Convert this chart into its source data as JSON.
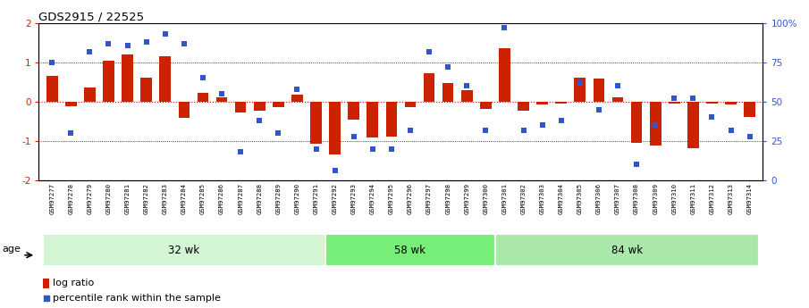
{
  "title": "GDS2915 / 22525",
  "samples": [
    "GSM97277",
    "GSM97278",
    "GSM97279",
    "GSM97280",
    "GSM97281",
    "GSM97282",
    "GSM97283",
    "GSM97284",
    "GSM97285",
    "GSM97286",
    "GSM97287",
    "GSM97288",
    "GSM97289",
    "GSM97290",
    "GSM97291",
    "GSM97292",
    "GSM97293",
    "GSM97294",
    "GSM97295",
    "GSM97296",
    "GSM97297",
    "GSM97298",
    "GSM97299",
    "GSM97300",
    "GSM97301",
    "GSM97302",
    "GSM97303",
    "GSM97304",
    "GSM97305",
    "GSM97306",
    "GSM97307",
    "GSM97308",
    "GSM97309",
    "GSM97310",
    "GSM97311",
    "GSM97312",
    "GSM97313",
    "GSM97314"
  ],
  "log_ratio": [
    0.65,
    -0.12,
    0.35,
    1.05,
    1.2,
    0.62,
    1.15,
    -0.42,
    0.22,
    0.1,
    -0.28,
    -0.22,
    -0.15,
    0.18,
    -1.08,
    -1.35,
    -0.45,
    -0.92,
    -0.88,
    -0.15,
    0.72,
    0.48,
    0.3,
    -0.18,
    1.35,
    -0.22,
    -0.08,
    -0.05,
    0.62,
    0.58,
    0.12,
    -1.05,
    -1.12,
    -0.05,
    -1.18,
    -0.05,
    -0.08,
    -0.38
  ],
  "percentile": [
    75,
    30,
    82,
    87,
    86,
    88,
    93,
    87,
    65,
    55,
    18,
    38,
    30,
    58,
    20,
    6,
    28,
    20,
    20,
    32,
    82,
    72,
    60,
    32,
    97,
    32,
    35,
    38,
    62,
    45,
    60,
    10,
    35,
    52,
    52,
    40,
    32,
    28
  ],
  "groups": [
    {
      "label": "32 wk",
      "start": 0,
      "end": 15,
      "color": "#d4f5d4"
    },
    {
      "label": "58 wk",
      "start": 15,
      "end": 24,
      "color": "#77ee77"
    },
    {
      "label": "84 wk",
      "start": 24,
      "end": 38,
      "color": "#aae8aa"
    }
  ],
  "bar_color": "#cc2200",
  "dot_color": "#3355cc",
  "ylim_left": [
    -2.0,
    2.0
  ],
  "yticks_left": [
    -2,
    -1,
    0,
    1,
    2
  ],
  "ytick_labels_left": [
    "-2",
    "-1",
    "0",
    "1",
    "2"
  ],
  "yticks_right": [
    0,
    25,
    50,
    75,
    100
  ],
  "ytick_labels_right": [
    "0",
    "25",
    "50",
    "75",
    "100%"
  ],
  "hlines": [
    1.0,
    0.0,
    -1.0
  ],
  "legend_log_ratio": "log ratio",
  "legend_percentile": "percentile rank within the sample",
  "age_label": "age",
  "xtick_bg_color": "#dddddd"
}
